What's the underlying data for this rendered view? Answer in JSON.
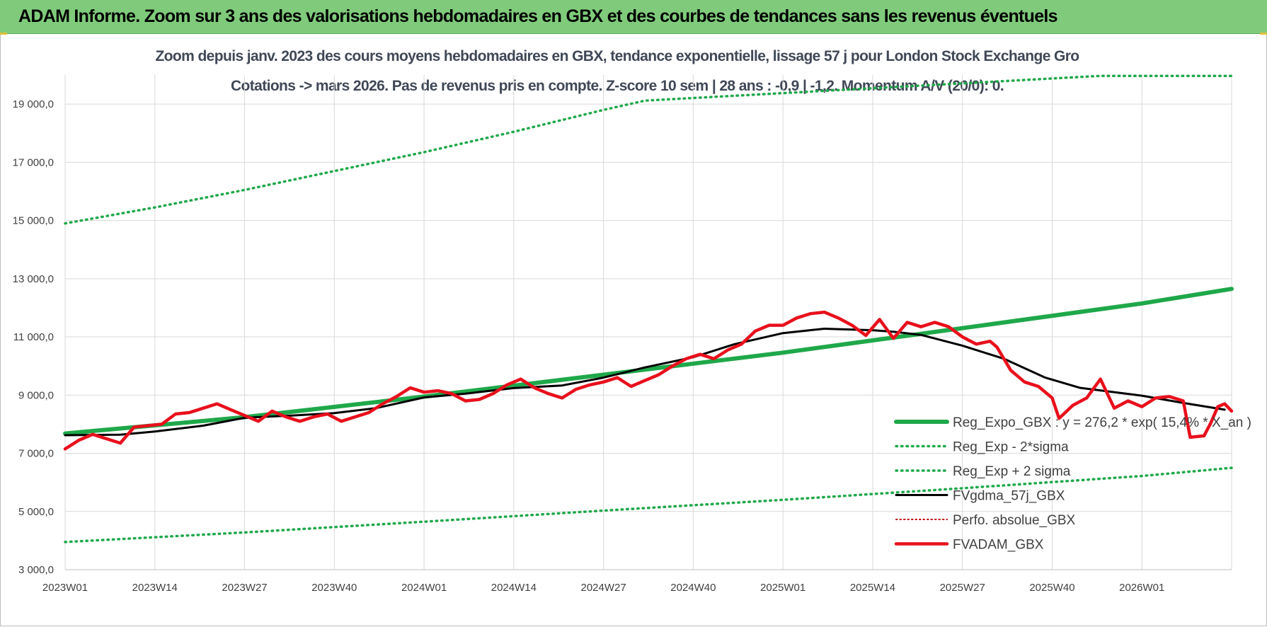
{
  "header": {
    "title": "ADAM Informe. Zoom sur 3 ans des valorisations hebdomadaires en GBX et des courbes de tendances sans les revenus éventuels"
  },
  "colors": {
    "header_bg": "#7fcb7b",
    "reg_expo": "#1fa84a",
    "sigma_bands": "#1fa84a",
    "fvgdma": "#000000",
    "perfo": "#c00000",
    "fvadam": "#e8101c"
  },
  "chart_data": {
    "type": "line",
    "title_line1": "Zoom depuis janv. 2023 des cours moyens hebdomadaires en GBX, tendance exponentielle, lissage 57 j pour London Stock Exchange Gro",
    "title_line2": "Cotations -> mars 2026. Pas de revenus pris en compte. Z-score 10 sem | 28 ans : -0,9 | -1,2. Momentum A/V (20/0): 0.",
    "ylim": [
      3000,
      20000
    ],
    "yticks": [
      3000,
      5000,
      7000,
      9000,
      11000,
      13000,
      15000,
      17000,
      19000
    ],
    "ytick_labels": [
      "3 000,0",
      "5 000,0",
      "7 000,0",
      "9 000,0",
      "11 000,0",
      "13 000,0",
      "15 000,0",
      "17 000,0",
      "19 000,0"
    ],
    "x_count": 170,
    "xticks": [
      0,
      13,
      26,
      39,
      52,
      65,
      78,
      91,
      104,
      117,
      130,
      143,
      156
    ],
    "xtick_labels": [
      "2023W01",
      "2023W14",
      "2023W27",
      "2023W40",
      "2024W01",
      "2024W14",
      "2024W27",
      "2024W40",
      "2025W01",
      "2025W14",
      "2025W27",
      "2025W40",
      "2026W01"
    ],
    "grid": true,
    "legend_position": "bottom-right",
    "series": [
      {
        "name": "Reg_Expo_GBX : y = 276,2 * exp( 15,4% * X_an )",
        "style": "solid-thick",
        "points": [
          [
            0,
            7680
          ],
          [
            26,
            8240
          ],
          [
            52,
            8950
          ],
          [
            78,
            9700
          ],
          [
            104,
            10460
          ],
          [
            130,
            11300
          ],
          [
            156,
            12150
          ],
          [
            169,
            12650
          ]
        ]
      },
      {
        "name": "Reg_Exp - 2*sigma",
        "style": "dotted",
        "points": [
          [
            0,
            3950
          ],
          [
            26,
            4280
          ],
          [
            52,
            4650
          ],
          [
            78,
            5030
          ],
          [
            104,
            5400
          ],
          [
            130,
            5800
          ],
          [
            156,
            6220
          ],
          [
            169,
            6500
          ]
        ]
      },
      {
        "name": "Reg_Exp + 2 sigma",
        "style": "dotted",
        "points": [
          [
            0,
            14900
          ],
          [
            13,
            15450
          ],
          [
            26,
            16050
          ],
          [
            39,
            16700
          ],
          [
            52,
            17350
          ],
          [
            65,
            18050
          ],
          [
            78,
            18800
          ],
          [
            84,
            19120
          ],
          [
            150,
            19970
          ],
          [
            169,
            19970
          ]
        ]
      },
      {
        "name": "FVgdma_57j_GBX",
        "style": "solid",
        "points": [
          [
            0,
            7620
          ],
          [
            8,
            7640
          ],
          [
            13,
            7750
          ],
          [
            20,
            7950
          ],
          [
            26,
            8220
          ],
          [
            33,
            8300
          ],
          [
            39,
            8380
          ],
          [
            45,
            8550
          ],
          [
            52,
            8920
          ],
          [
            58,
            9050
          ],
          [
            65,
            9240
          ],
          [
            72,
            9330
          ],
          [
            78,
            9600
          ],
          [
            84,
            9950
          ],
          [
            91,
            10300
          ],
          [
            97,
            10750
          ],
          [
            104,
            11130
          ],
          [
            110,
            11280
          ],
          [
            117,
            11230
          ],
          [
            120,
            11180
          ],
          [
            124,
            11070
          ],
          [
            130,
            10700
          ],
          [
            136,
            10250
          ],
          [
            142,
            9600
          ],
          [
            147,
            9250
          ],
          [
            156,
            8980
          ],
          [
            162,
            8730
          ],
          [
            168,
            8500
          ]
        ]
      },
      {
        "name": "Perfo. absolue_GBX",
        "style": "dotted-thin",
        "points": []
      },
      {
        "name": "FVADAM_GBX",
        "style": "solid-thick",
        "points": [
          [
            0,
            7150
          ],
          [
            2,
            7450
          ],
          [
            4,
            7650
          ],
          [
            6,
            7500
          ],
          [
            8,
            7350
          ],
          [
            10,
            7900
          ],
          [
            12,
            7950
          ],
          [
            14,
            8000
          ],
          [
            16,
            8350
          ],
          [
            18,
            8400
          ],
          [
            20,
            8550
          ],
          [
            22,
            8700
          ],
          [
            24,
            8500
          ],
          [
            26,
            8300
          ],
          [
            28,
            8100
          ],
          [
            30,
            8450
          ],
          [
            32,
            8250
          ],
          [
            34,
            8100
          ],
          [
            36,
            8250
          ],
          [
            38,
            8350
          ],
          [
            40,
            8100
          ],
          [
            42,
            8250
          ],
          [
            44,
            8400
          ],
          [
            46,
            8700
          ],
          [
            48,
            8950
          ],
          [
            50,
            9250
          ],
          [
            52,
            9100
          ],
          [
            54,
            9150
          ],
          [
            56,
            9050
          ],
          [
            58,
            8800
          ],
          [
            60,
            8850
          ],
          [
            62,
            9050
          ],
          [
            64,
            9350
          ],
          [
            66,
            9550
          ],
          [
            68,
            9250
          ],
          [
            70,
            9050
          ],
          [
            72,
            8900
          ],
          [
            74,
            9200
          ],
          [
            76,
            9350
          ],
          [
            78,
            9450
          ],
          [
            80,
            9600
          ],
          [
            82,
            9300
          ],
          [
            84,
            9500
          ],
          [
            86,
            9700
          ],
          [
            88,
            10000
          ],
          [
            90,
            10250
          ],
          [
            92,
            10400
          ],
          [
            94,
            10250
          ],
          [
            96,
            10550
          ],
          [
            98,
            10750
          ],
          [
            100,
            11200
          ],
          [
            102,
            11400
          ],
          [
            104,
            11400
          ],
          [
            106,
            11650
          ],
          [
            108,
            11800
          ],
          [
            110,
            11850
          ],
          [
            112,
            11650
          ],
          [
            114,
            11400
          ],
          [
            116,
            11050
          ],
          [
            118,
            11600
          ],
          [
            120,
            10950
          ],
          [
            122,
            11500
          ],
          [
            124,
            11350
          ],
          [
            126,
            11500
          ],
          [
            128,
            11350
          ],
          [
            130,
            11000
          ],
          [
            132,
            10750
          ],
          [
            134,
            10850
          ],
          [
            135,
            10650
          ],
          [
            137,
            9850
          ],
          [
            139,
            9450
          ],
          [
            141,
            9300
          ],
          [
            143,
            8900
          ],
          [
            144,
            8200
          ],
          [
            146,
            8650
          ],
          [
            148,
            8900
          ],
          [
            150,
            9550
          ],
          [
            152,
            8550
          ],
          [
            154,
            8800
          ],
          [
            156,
            8600
          ],
          [
            158,
            8900
          ],
          [
            160,
            8950
          ],
          [
            162,
            8800
          ],
          [
            163,
            7550
          ],
          [
            165,
            7600
          ],
          [
            166,
            8050
          ],
          [
            167,
            8600
          ],
          [
            168,
            8700
          ],
          [
            169,
            8450
          ]
        ]
      }
    ]
  }
}
